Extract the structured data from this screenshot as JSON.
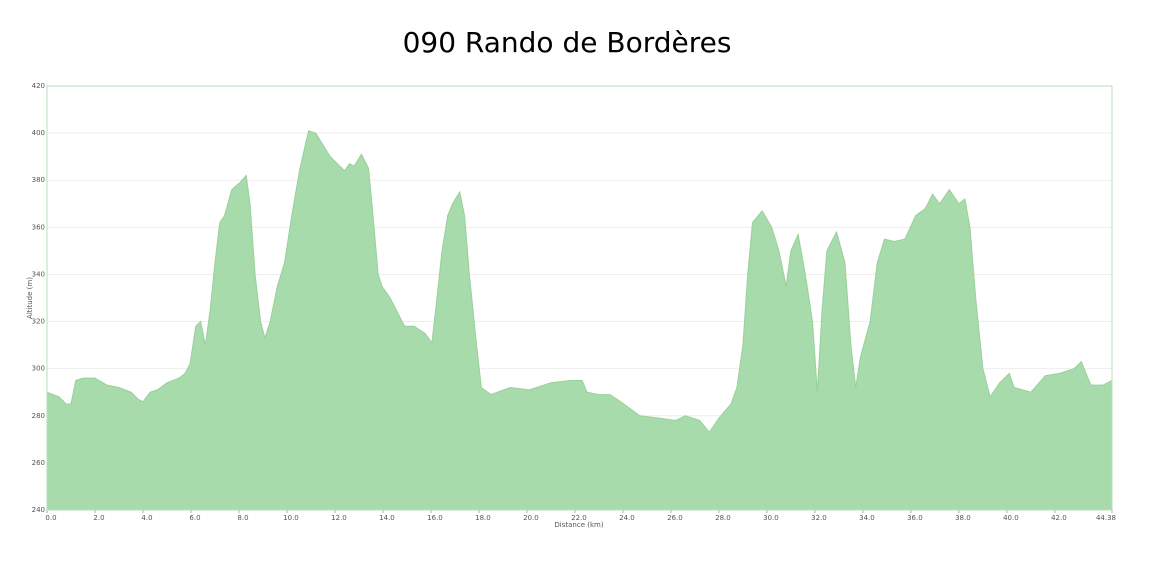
{
  "chart_data": {
    "type": "area",
    "title": "090 Rando de Bordères",
    "x_label": "Distance  (km)",
    "y_label": "Altitude (m)",
    "color": "#a8dbab",
    "x": [
      0,
      0.5,
      0.8,
      1.0,
      1.2,
      1.5,
      2.0,
      2.5,
      3.0,
      3.5,
      3.8,
      4.0,
      4.3,
      4.6,
      5.0,
      5.5,
      5.75,
      5.96,
      6.2,
      6.4,
      6.6,
      6.8,
      7.0,
      7.2,
      7.4,
      7.7,
      8.04,
      8.3,
      8.46,
      8.67,
      8.9,
      9.08,
      9.3,
      9.6,
      9.9,
      10.2,
      10.54,
      10.9,
      11.2,
      11.5,
      11.8,
      12.2,
      12.4,
      12.6,
      12.8,
      13.1,
      13.4,
      13.54,
      13.8,
      13.96,
      14.3,
      14.7,
      14.9,
      15.3,
      15.75,
      16.04,
      16.25,
      16.46,
      16.7,
      16.9,
      17.2,
      17.4,
      17.6,
      17.9,
      18.1,
      18.5,
      19.3,
      20.1,
      21.0,
      21.8,
      22.3,
      22.5,
      23.0,
      23.46,
      23.9,
      24.3,
      24.7,
      25.5,
      26.2,
      26.6,
      27.2,
      27.6,
      28.0,
      28.5,
      28.75,
      29.0,
      29.2,
      29.4,
      29.8,
      30.2,
      30.5,
      30.8,
      31.0,
      31.3,
      31.6,
      31.9,
      32.1,
      32.3,
      32.5,
      32.9,
      33.25,
      33.5,
      33.7,
      33.9,
      34.3,
      34.6,
      34.9,
      35.3,
      35.75,
      36.2,
      36.6,
      36.9,
      37.2,
      37.6,
      38.0,
      38.25,
      38.46,
      38.7,
      39.0,
      39.3,
      39.7,
      40.1,
      40.3,
      41.0,
      41.6,
      42.2,
      42.8,
      43.1,
      43.5,
      44.0,
      44.38
    ],
    "values": [
      290,
      288,
      285,
      285,
      295,
      296,
      296,
      293,
      292,
      290,
      287,
      286,
      290,
      291,
      294,
      296,
      298,
      302,
      318,
      320,
      310,
      325,
      345,
      362,
      365,
      376,
      379,
      382,
      370,
      340,
      320,
      313,
      320,
      335,
      345,
      365,
      385,
      401,
      400,
      395,
      390,
      386,
      384,
      387,
      386,
      391,
      385,
      370,
      340,
      335,
      330,
      322,
      318,
      318,
      315,
      311,
      330,
      350,
      365,
      370,
      375,
      365,
      340,
      310,
      292,
      289,
      292,
      291,
      294,
      295,
      295,
      290,
      289,
      289,
      286,
      283,
      280,
      279,
      278,
      280,
      278,
      273,
      279,
      285,
      292,
      310,
      340,
      362,
      367,
      360,
      350,
      335,
      350,
      357,
      340,
      320,
      290,
      325,
      350,
      358,
      345,
      310,
      292,
      305,
      320,
      345,
      355,
      354,
      355,
      365,
      368,
      374,
      370,
      376,
      370,
      372,
      360,
      330,
      300,
      288,
      294,
      298,
      292,
      290,
      297,
      298,
      300,
      303,
      293,
      293,
      295
    ],
    "xlim": [
      0,
      44.38
    ],
    "xticks": [
      {
        "value": 0,
        "label": "0.0"
      },
      {
        "value": 2,
        "label": "2.0"
      },
      {
        "value": 4,
        "label": "4.0"
      },
      {
        "value": 6,
        "label": "6.0"
      },
      {
        "value": 8,
        "label": "8.0"
      },
      {
        "value": 10,
        "label": "10.0"
      },
      {
        "value": 12,
        "label": "12.0"
      },
      {
        "value": 14,
        "label": "14.0"
      },
      {
        "value": 16,
        "label": "16.0"
      },
      {
        "value": 18,
        "label": "18.0"
      },
      {
        "value": 20,
        "label": "20.0"
      },
      {
        "value": 22,
        "label": "22.0"
      },
      {
        "value": 24,
        "label": "24.0"
      },
      {
        "value": 26,
        "label": "26.0"
      },
      {
        "value": 28,
        "label": "28.0"
      },
      {
        "value": 30,
        "label": "30.0"
      },
      {
        "value": 32,
        "label": "32.0"
      },
      {
        "value": 34,
        "label": "34.0"
      },
      {
        "value": 36,
        "label": "36.0"
      },
      {
        "value": 38,
        "label": "38.0"
      },
      {
        "value": 40,
        "label": "40.0"
      },
      {
        "value": 42,
        "label": "42.0"
      },
      44.38
    ],
    "ylim": [
      240,
      420
    ],
    "yticks": [
      240,
      260,
      280,
      300,
      320,
      340,
      360,
      380,
      400,
      420
    ],
    "grid": true
  }
}
